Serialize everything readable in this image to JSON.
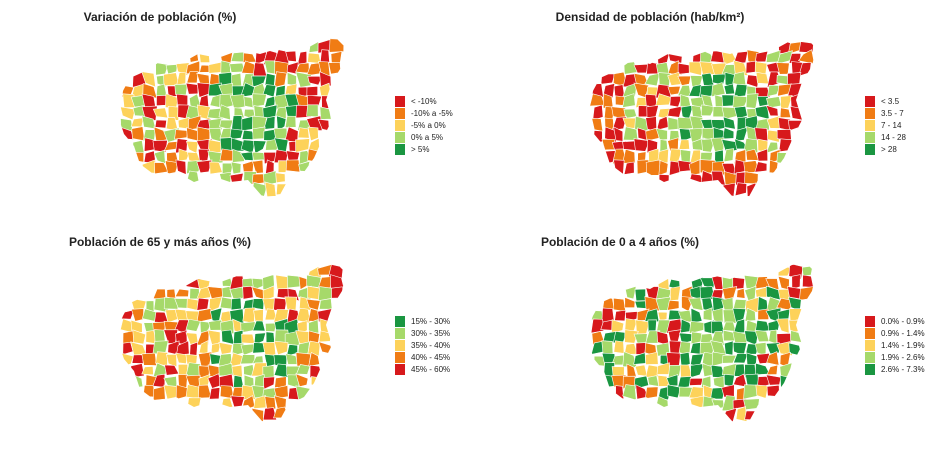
{
  "palette": [
    "#d7191c",
    "#f07c14",
    "#fdd25a",
    "#a6d96a",
    "#1a9641"
  ],
  "panels": [
    {
      "title": "Variación de población (%)",
      "legend": [
        "< -10%",
        "-10% a -5%",
        "-5% a 0%",
        "0% a 5%",
        "> 5%"
      ],
      "legend_colors": [
        "#d7191c",
        "#f07c14",
        "#fdd25a",
        "#a6d96a",
        "#1a9641"
      ]
    },
    {
      "title": "Densidad de población (hab/km²)",
      "legend": [
        "< 3.5",
        "3.5 - 7",
        "7 - 14",
        "14 - 28",
        "> 28"
      ],
      "legend_colors": [
        "#d7191c",
        "#f07c14",
        "#fdd25a",
        "#a6d96a",
        "#1a9641"
      ]
    },
    {
      "title": "Población de 65 y más años (%)",
      "legend": [
        "15% - 30%",
        "30% - 35%",
        "35% - 40%",
        "40% - 45%",
        "45% - 60%"
      ],
      "legend_colors": [
        "#1a9641",
        "#a6d96a",
        "#fdd25a",
        "#f07c14",
        "#d7191c"
      ]
    },
    {
      "title": "Población de 0 a 4 años (%)",
      "legend": [
        "0.0% - 0.9%",
        "0.9% - 1.4%",
        "1.4% - 1.9%",
        "1.9% - 2.6%",
        "2.6% - 7.3%"
      ],
      "legend_colors": [
        "#d7191c",
        "#f07c14",
        "#fdd25a",
        "#a6d96a",
        "#1a9641"
      ]
    }
  ]
}
